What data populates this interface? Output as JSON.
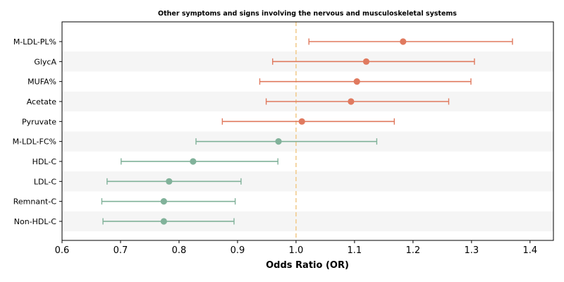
{
  "chart_data": {
    "type": "forest",
    "title": "Other symptoms and signs involving the nervous and musculoskeletal systems",
    "xlabel": "Odds Ratio (OR)",
    "xlim": [
      0.6,
      1.44
    ],
    "xticks": [
      "0.6",
      "0.7",
      "0.8",
      "0.9",
      "1.0",
      "1.1",
      "1.2",
      "1.3",
      "1.4"
    ],
    "reference_line": 1.0,
    "colors": {
      "above": "#e07a5f",
      "below": "#81b29a",
      "reference": "#f2cc8f",
      "band": "#f5f5f5"
    },
    "rows": [
      {
        "label": "M-LDL-PL%",
        "or": 1.183,
        "lo": 1.022,
        "hi": 1.37
      },
      {
        "label": "GlycA",
        "or": 1.12,
        "lo": 0.96,
        "hi": 1.305
      },
      {
        "label": "MUFA%",
        "or": 1.104,
        "lo": 0.938,
        "hi": 1.299
      },
      {
        "label": "Acetate",
        "or": 1.094,
        "lo": 0.949,
        "hi": 1.261
      },
      {
        "label": "Pyruvate",
        "or": 1.01,
        "lo": 0.874,
        "hi": 1.168
      },
      {
        "label": "M-LDL-FC%",
        "or": 0.97,
        "lo": 0.829,
        "hi": 1.138
      },
      {
        "label": "HDL-C",
        "or": 0.824,
        "lo": 0.701,
        "hi": 0.969
      },
      {
        "label": "LDL-C",
        "or": 0.783,
        "lo": 0.677,
        "hi": 0.906
      },
      {
        "label": "Remnant-C",
        "or": 0.774,
        "lo": 0.668,
        "hi": 0.896
      },
      {
        "label": "Non-HDL-C",
        "or": 0.774,
        "lo": 0.67,
        "hi": 0.894
      }
    ]
  }
}
